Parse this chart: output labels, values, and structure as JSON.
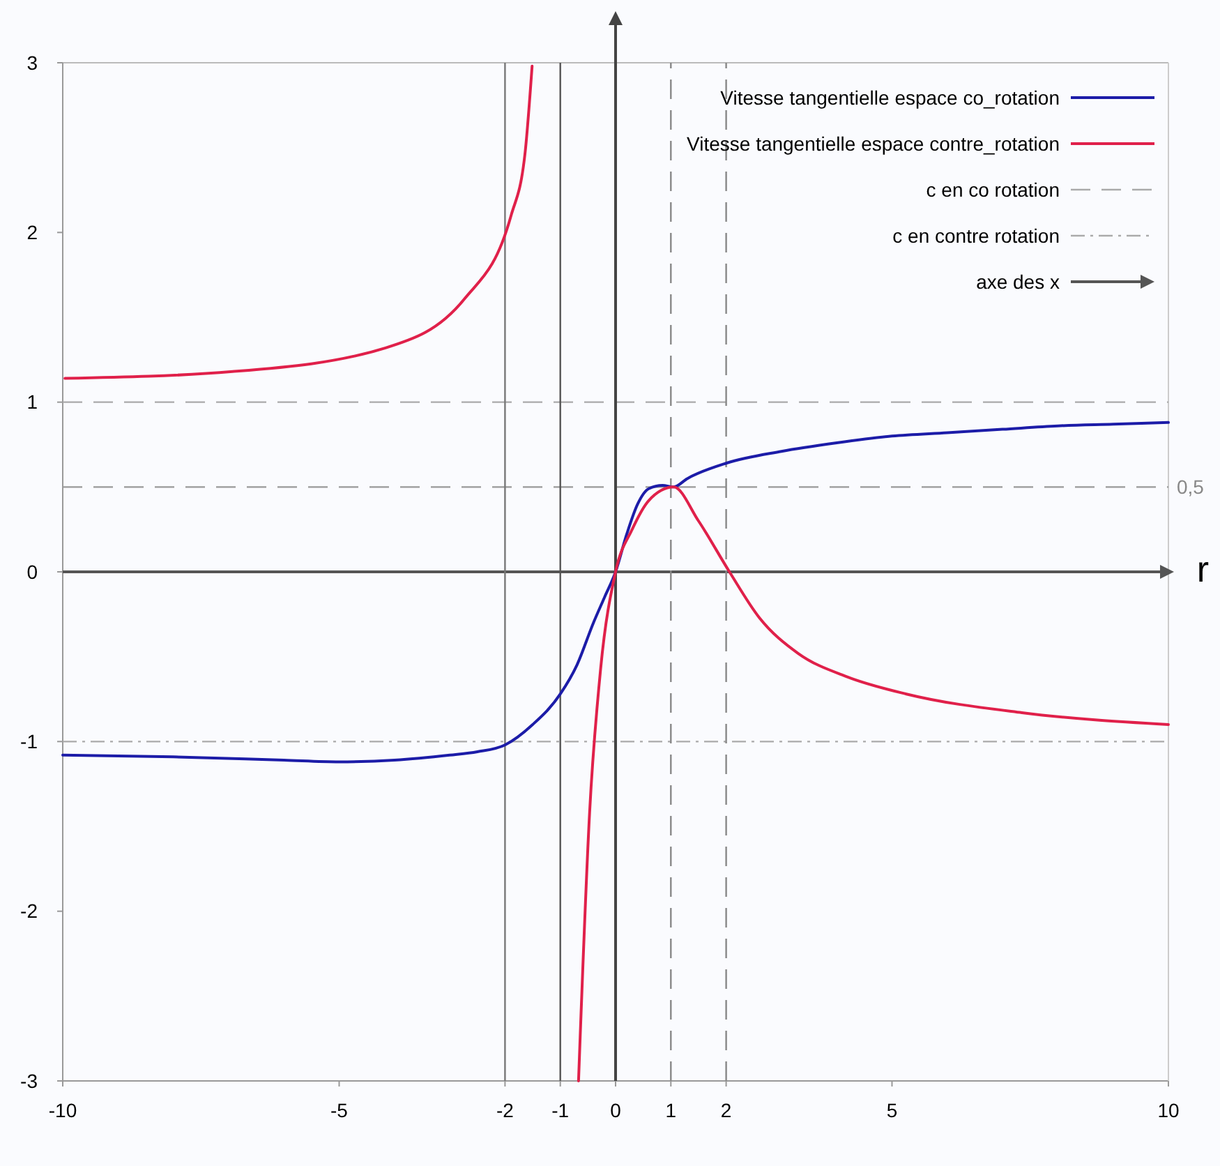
{
  "chart_data": {
    "type": "line",
    "xlabel": "r",
    "xlim": [
      -10,
      10
    ],
    "ylim": [
      -3,
      3
    ],
    "xticks": [
      -10,
      -5,
      -2,
      -1,
      0,
      1,
      2,
      5,
      10
    ],
    "yticks": [
      -3,
      -2,
      -1,
      0,
      1,
      2,
      3
    ],
    "grid": false,
    "legend": "top right",
    "line_style": "solid",
    "marker": "none",
    "series": [
      {
        "name": "Vitesse tangentielle espace co_rotation",
        "color": "#1c1ca8",
        "x": [
          -10,
          -8,
          -6,
          -5,
          -4,
          -3,
          -2.5,
          -2,
          -1.5,
          -1,
          -0.7,
          -0.4,
          -0.2,
          0,
          0.2,
          0.4,
          0.6,
          0.85,
          1.05,
          1.3,
          2,
          3,
          4,
          5,
          6,
          7,
          8,
          9,
          10
        ],
        "values": [
          -1.08,
          -1.09,
          -1.11,
          -1.12,
          -1.11,
          -1.08,
          -1.06,
          -1.02,
          -0.9,
          -0.72,
          -0.55,
          -0.3,
          -0.15,
          0,
          0.22,
          0.4,
          0.49,
          0.51,
          0.5,
          0.55,
          0.64,
          0.71,
          0.76,
          0.8,
          0.82,
          0.84,
          0.86,
          0.87,
          0.88
        ]
      },
      {
        "name": "Vitesse tangentielle espace contre_rotation",
        "color": "#e0204a",
        "x": [
          -0.67,
          -0.47,
          -0.27,
          0,
          0.3,
          0.6,
          1.05,
          1.5,
          2.06,
          2.6,
          3.3,
          4.2,
          5.26,
          7.35,
          10
        ],
        "values": [
          -3,
          -1.42,
          -0.57,
          0,
          0.25,
          0.42,
          0.5,
          0.3,
          0,
          -0.27,
          -0.48,
          -0.62,
          -0.72,
          -0.83,
          -0.9
        ]
      },
      {
        "color": "#e0204a",
        "x": [
          -9.96,
          -6.93,
          -4.16,
          -2.73,
          -1.89,
          -1.64,
          -1.51
        ],
        "values": [
          1.14,
          1.18,
          1.32,
          1.61,
          2.1,
          2.46,
          2.98
        ]
      }
    ],
    "ref_lines": [
      {
        "axis": "y",
        "value": 1,
        "label": "c en co rotation",
        "color": "#aaaaaa",
        "line_style": "dashed"
      },
      {
        "axis": "y",
        "value": -1,
        "label": "c en contre rotation",
        "color": "#aaaaaa",
        "line_style": "dashdot"
      },
      {
        "axis": "y",
        "value": 0,
        "label": "axe des x",
        "color": "#555555",
        "line_style": "solid"
      },
      {
        "axis": "y",
        "value": 0.5,
        "color": "#999999",
        "line_style": "dashed"
      },
      {
        "axis": "x",
        "value": 0,
        "color": "#444444",
        "line_style": "solid"
      },
      {
        "axis": "x",
        "value": -2,
        "color": "#777777",
        "line_style": "solid"
      },
      {
        "axis": "x",
        "value": -1,
        "color": "#555555",
        "line_style": "solid"
      },
      {
        "axis": "x",
        "value": 1,
        "color": "#888888",
        "line_style": "dashed"
      },
      {
        "axis": "x",
        "value": 2,
        "color": "#888888",
        "line_style": "dashed"
      }
    ],
    "annotations": [
      {
        "text": "0,5",
        "x": 10,
        "y": 0.5
      }
    ]
  }
}
